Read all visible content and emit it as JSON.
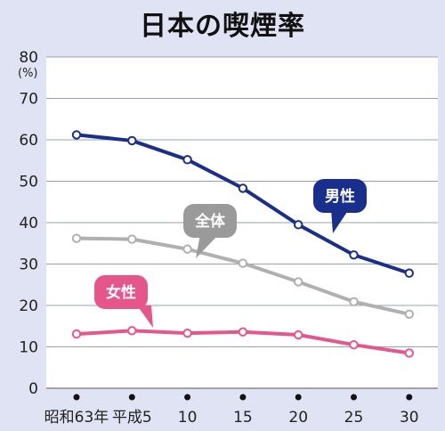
{
  "title": "日本の喫煙率",
  "colors": {
    "background": "#dfe3f3",
    "plot_background": "#ffffff",
    "grid": "#9aa0b0",
    "male": "#1a2f8c",
    "total": "#b0b0b0",
    "female": "#e5568a",
    "total_bubble": "#9a9a9a"
  },
  "chart_data": {
    "type": "line",
    "title": "日本の喫煙率",
    "ylabel": "(%)",
    "ylim": [
      0,
      80
    ],
    "yticks": [
      0,
      10,
      20,
      30,
      40,
      50,
      60,
      70,
      80
    ],
    "categories": [
      "昭和63年",
      "平成5",
      "10",
      "15",
      "20",
      "25",
      "30"
    ],
    "grid": true,
    "series": [
      {
        "name": "男性",
        "color": "#1a2f8c",
        "values": [
          61.2,
          59.8,
          55.2,
          48.3,
          39.5,
          32.2,
          27.8
        ]
      },
      {
        "name": "全体",
        "color": "#b0b0b0",
        "values": [
          36.2,
          36.0,
          33.6,
          30.2,
          25.7,
          20.9,
          17.9
        ]
      },
      {
        "name": "女性",
        "color": "#e5568a",
        "values": [
          13.1,
          13.9,
          13.3,
          13.6,
          12.9,
          10.5,
          8.5
        ]
      }
    ]
  }
}
